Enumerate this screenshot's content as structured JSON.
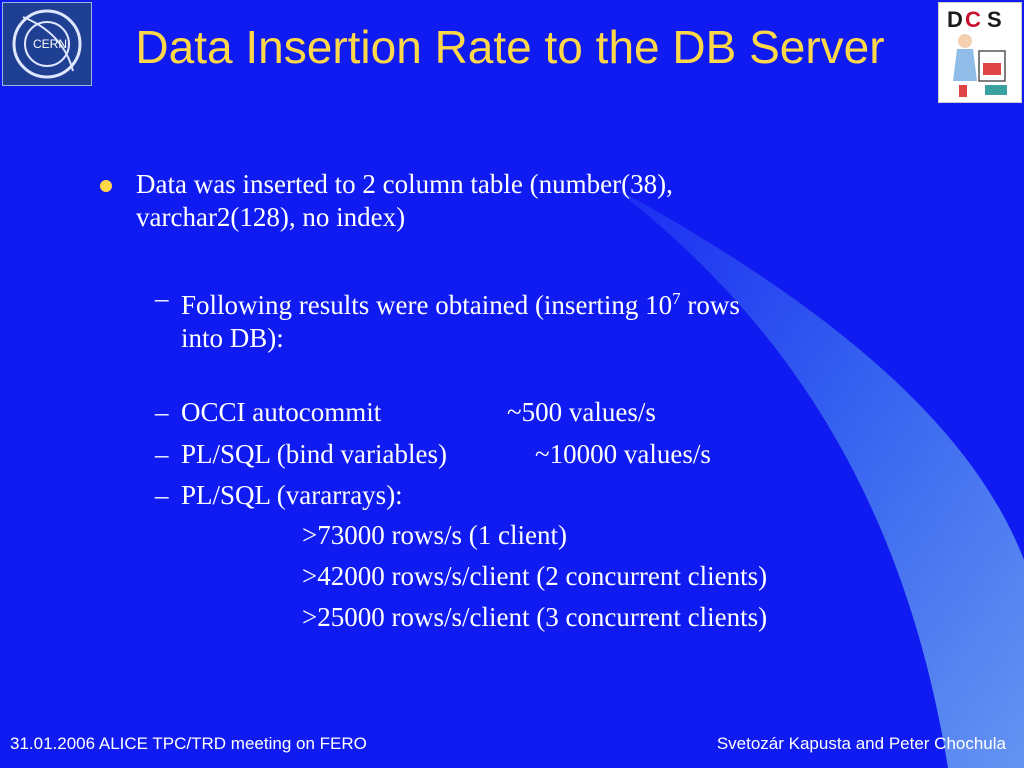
{
  "slide": {
    "title": "Data Insertion Rate to the DB Server",
    "bullet": "Data was inserted to 2 column table (number(38), varchar2(128), no index)",
    "sub_items": [
      {
        "dash": "–",
        "text_line1_prefix": "Following results were obtained (inserting 10",
        "sup": "7",
        "text_line1_suffix": " rows",
        "text_line2": "into DB):"
      },
      {
        "dash": "–",
        "label": "OCCI autocommit",
        "value": "~500  values/s"
      },
      {
        "dash": "–",
        "label": "PL/SQL (bind variables)",
        "value": "~10000 values/s"
      },
      {
        "dash": "–",
        "label": "PL/SQL (vararrays):"
      }
    ],
    "results": [
      ">73000 rows/s (1 client)",
      ">42000 rows/s/client (2 concurrent clients)",
      ">25000 rows/s/client (3 concurrent clients)"
    ]
  },
  "footer": {
    "left": "31.01.2006 ALICE TPC/TRD meeting on FERO",
    "right": "Svetozár Kapusta and Peter Chochula"
  },
  "logos": {
    "left": "cern-logo",
    "right": "dcs-logo",
    "left_text": "CERN",
    "right_text": "DCS"
  },
  "colors": {
    "background": "#0f1bf0",
    "title": "#ffd84a",
    "bullet": "#ffd84a",
    "text": "#ffffff"
  }
}
